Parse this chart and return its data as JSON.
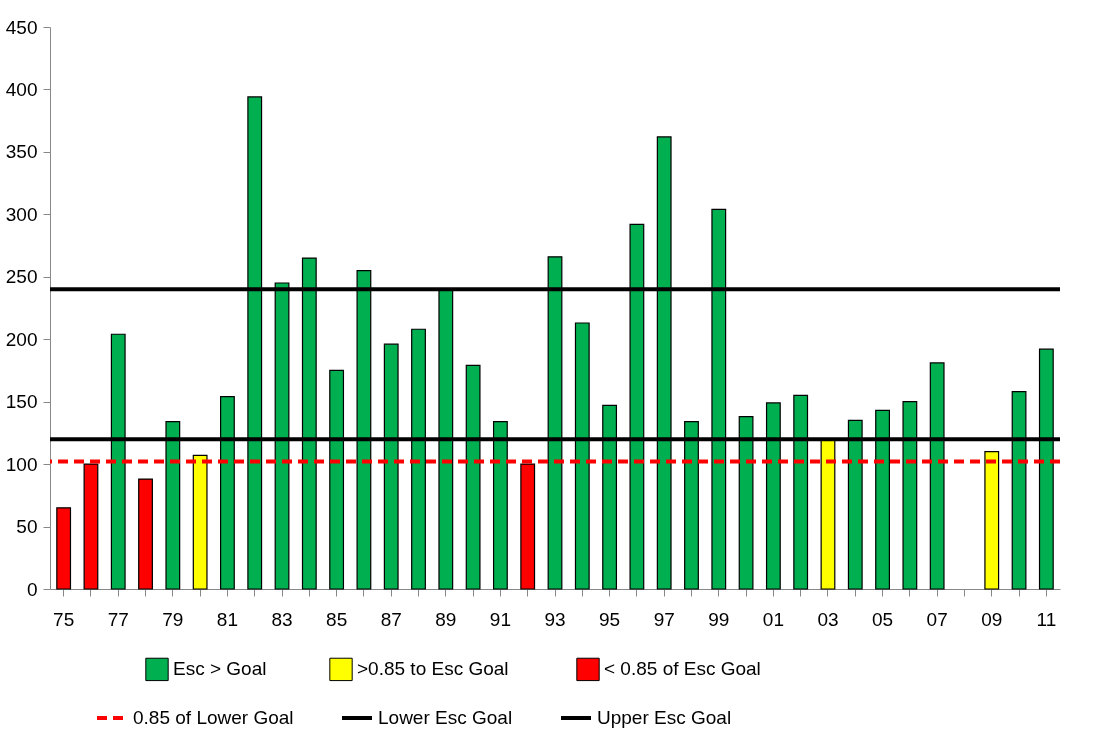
{
  "chart_data": {
    "type": "bar",
    "categories": [
      "75",
      null,
      "77",
      null,
      "79",
      null,
      "81",
      null,
      "83",
      null,
      "85",
      null,
      "87",
      null,
      "89",
      null,
      "91",
      null,
      "93",
      null,
      "95",
      null,
      "97",
      null,
      "99",
      null,
      "01",
      null,
      "03",
      null,
      "05",
      null,
      "07",
      null,
      "09",
      null,
      "11"
    ],
    "series": [
      {
        "name": "Esc > Goal",
        "color": "#00b050",
        "values": [
          null,
          null,
          204,
          null,
          134,
          null,
          154,
          394,
          245,
          265,
          175,
          255,
          196,
          208,
          240,
          179,
          134,
          null,
          266,
          213,
          147,
          292,
          362,
          134,
          304,
          138,
          149,
          155,
          null,
          135,
          143,
          150,
          181,
          null,
          null,
          158,
          192
        ]
      },
      {
        "name": ">0.85 to  Esc Goal",
        "color": "#ffff00",
        "values": [
          null,
          null,
          null,
          null,
          null,
          107,
          null,
          null,
          null,
          null,
          null,
          null,
          null,
          null,
          null,
          null,
          null,
          null,
          null,
          null,
          null,
          null,
          null,
          null,
          null,
          null,
          null,
          null,
          119,
          null,
          null,
          null,
          null,
          null,
          110,
          null,
          null
        ]
      },
      {
        "name": "< 0.85 of  Esc Goal",
        "color": "#ff0000",
        "values": [
          65,
          100,
          null,
          88,
          null,
          null,
          null,
          null,
          null,
          null,
          null,
          null,
          null,
          null,
          null,
          null,
          null,
          100,
          null,
          null,
          null,
          null,
          null,
          null,
          null,
          null,
          null,
          null,
          null,
          null,
          null,
          null,
          null,
          null,
          null,
          null,
          null
        ]
      }
    ],
    "ref_lines": [
      {
        "axis": "y",
        "value": 102,
        "label": "0.85 of Lower Goal",
        "color": "#ff0000",
        "line_style": "dashed"
      },
      {
        "axis": "y",
        "value": 120,
        "label": "Lower Esc Goal",
        "color": "#000000",
        "line_style": "solid"
      },
      {
        "axis": "y",
        "value": 240,
        "label": "Upper Esc Goal",
        "color": "#000000",
        "line_style": "solid"
      }
    ],
    "ylim": [
      0,
      450
    ],
    "yticks": [
      0,
      50,
      100,
      150,
      200,
      250,
      300,
      350,
      400,
      450
    ],
    "grid": false,
    "legend": "bottom"
  }
}
